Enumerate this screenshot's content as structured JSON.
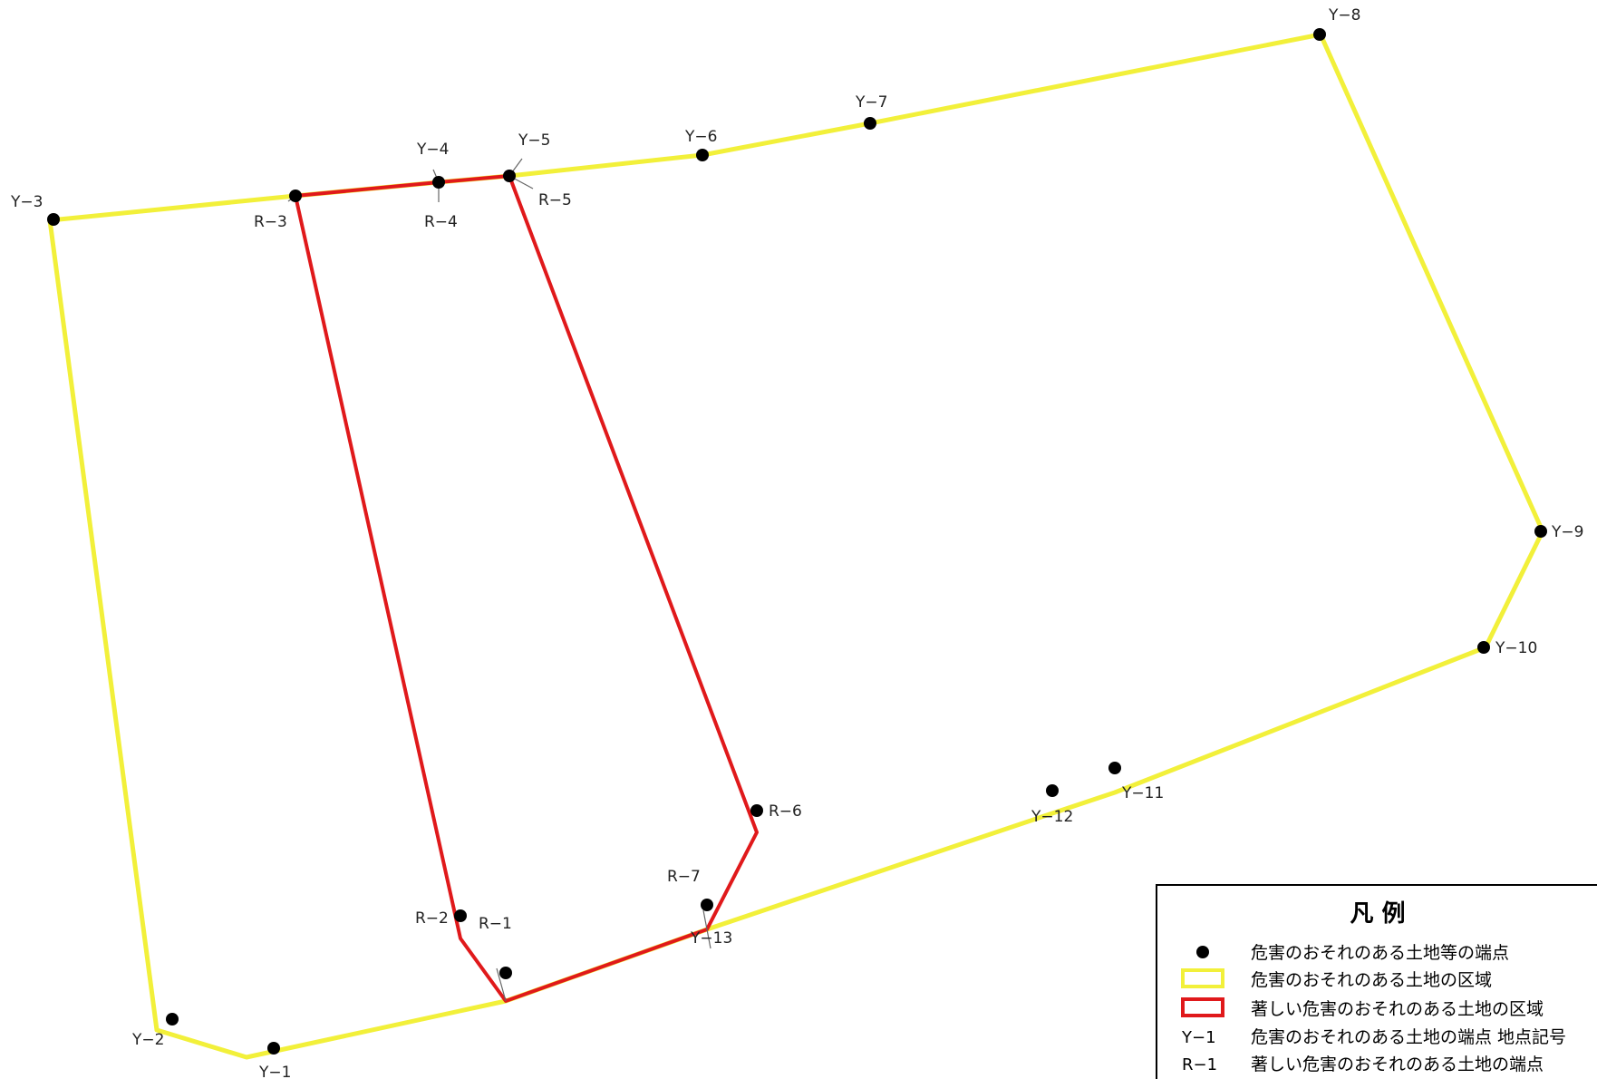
{
  "colors": {
    "hazard_area": "#f2f03a",
    "severe_area": "#e0191b",
    "point": "#000000",
    "leader": "#666666",
    "legend_border": "#000000"
  },
  "points": {
    "Y-1": "Y−1",
    "Y-2": "Y−2",
    "Y-3": "Y−3",
    "Y-4": "Y−4",
    "Y-5": "Y−5",
    "Y-6": "Y−6",
    "Y-7": "Y−7",
    "Y-8": "Y−8",
    "Y-9": "Y−9",
    "Y-10": "Y−10",
    "Y-11": "Y−11",
    "Y-12": "Y−12",
    "Y-13": "Y−13",
    "R-1": "R−1",
    "R-2": "R−2",
    "R-3": "R−3",
    "R-4": "R−4",
    "R-5": "R−5",
    "R-6": "R−6",
    "R-7": "R−7"
  },
  "legend": {
    "title": "凡 例",
    "items": [
      {
        "symbol": "dot",
        "label": "危害のおそれのある土地等の端点"
      },
      {
        "symbol": "yellow-box",
        "label": "危害のおそれのある土地の区域"
      },
      {
        "symbol": "red-box",
        "label": "著しい危害のおそれのある土地の区域"
      },
      {
        "symbol": "Y−1",
        "label": "危害のおそれのある土地の端点  地点記号"
      },
      {
        "symbol": "R−1",
        "label": "著しい危害のおそれのある土地の端点"
      }
    ]
  }
}
